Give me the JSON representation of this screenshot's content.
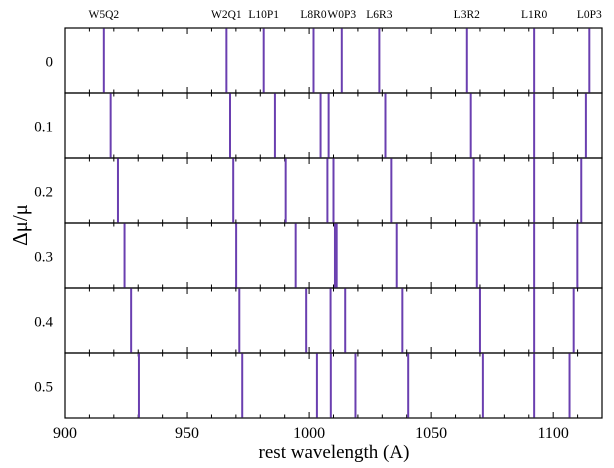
{
  "chart_data": {
    "type": "line",
    "title": "",
    "xlabel": "rest wavelength (A)",
    "ylabel": "Δμ/μ",
    "xlim": [
      900,
      1120
    ],
    "x_ticks": [
      900,
      950,
      1000,
      1050,
      1100
    ],
    "x_tick_labels": [
      "900",
      "950",
      "1000",
      "1050",
      "1100"
    ],
    "x_minor_step": 10,
    "grid": false,
    "line_color": "#6a3fb0",
    "transitions": [
      "W5Q2",
      "W2Q1",
      "L10P1",
      "L8R0",
      "W0P3",
      "L6R3",
      "L3R2",
      "L1R0",
      "L0P3"
    ],
    "panels": [
      {
        "label": "0",
        "dmu": 0.0,
        "positions": [
          915.9,
          966.1,
          981.4,
          1001.8,
          1013.4,
          1028.8,
          1064.6,
          1092.2,
          1114.8
        ]
      },
      {
        "label": "0.1",
        "dmu": 0.1,
        "positions": [
          918.7,
          967.6,
          986.0,
          1004.7,
          1008.0,
          1031.3,
          1066.2,
          1092.2,
          1113.4
        ]
      },
      {
        "label": "0.2",
        "dmu": 0.2,
        "positions": [
          921.7,
          968.9,
          990.4,
          1007.5,
          1010.0,
          1033.7,
          1067.4,
          1092.2,
          1111.5
        ]
      },
      {
        "label": "0.3",
        "dmu": 0.3,
        "positions": [
          924.4,
          970.1,
          994.5,
          1010.6,
          1011.3,
          1035.9,
          1068.7,
          1092.2,
          1109.9
        ]
      },
      {
        "label": "0.4",
        "dmu": 0.4,
        "positions": [
          927.1,
          971.4,
          998.8,
          1008.8,
          1014.8,
          1038.2,
          1070.0,
          1092.2,
          1108.4
        ]
      },
      {
        "label": "0.5",
        "dmu": 0.5,
        "positions": [
          930.3,
          972.6,
          1003.2,
          1008.9,
          1019.0,
          1040.6,
          1071.2,
          1092.2,
          1106.7
        ]
      }
    ]
  }
}
